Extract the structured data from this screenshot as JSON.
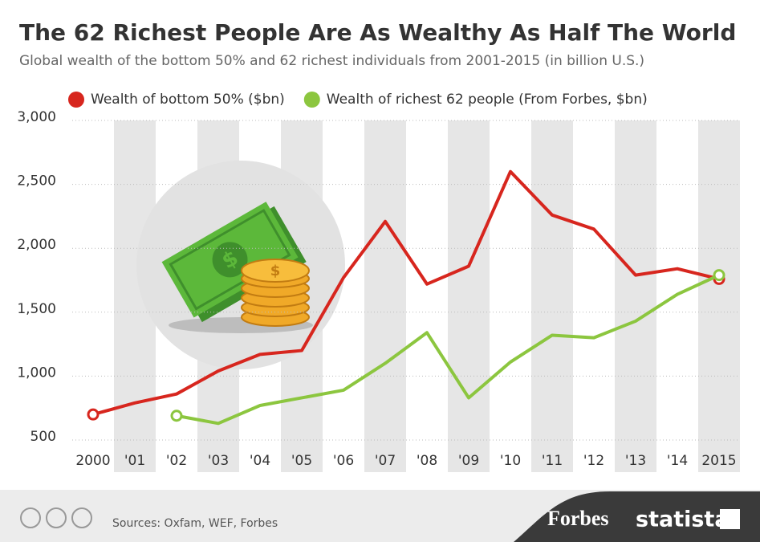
{
  "chart_data": {
    "type": "line",
    "title": "The 62 Richest People Are As Wealthy As Half The World",
    "subtitle": "Global wealth of the bottom 50% and 62 richest individuals from 2001-2015 (in billion U.S.)",
    "categories": [
      "2000",
      "'01",
      "'02",
      "'03",
      "'04",
      "'05",
      "'06",
      "'07",
      "'08",
      "'09",
      "'10",
      "'11",
      "'12",
      "'13",
      "'14",
      "2015"
    ],
    "series": [
      {
        "name": "Wealth of bottom 50% ($bn)",
        "color": "#d7261e",
        "values": [
          700,
          790,
          860,
          1040,
          1170,
          1200,
          1770,
          2210,
          1720,
          1860,
          2600,
          2260,
          2150,
          1790,
          1840,
          1760
        ]
      },
      {
        "name": "Wealth of richest 62 people (From Forbes, $bn)",
        "color": "#8cc63f",
        "values": [
          null,
          null,
          690,
          630,
          770,
          830,
          890,
          1100,
          1340,
          830,
          1110,
          1320,
          1300,
          1430,
          1640,
          1790
        ]
      }
    ],
    "ylim": [
      500,
      3000
    ],
    "yticks": [
      500,
      {
        "value": 1000,
        "label": "1,000"
      },
      {
        "value": 1500,
        "label": "1,500"
      },
      {
        "value": 2000,
        "label": "2,000"
      },
      {
        "value": 2500,
        "label": "2,500"
      },
      {
        "value": 3000,
        "label": "3,000"
      }
    ],
    "grid": true
  },
  "footer": {
    "source": "Sources: Oxfam, WEF, Forbes",
    "brands": [
      "Forbes",
      "statista"
    ]
  }
}
